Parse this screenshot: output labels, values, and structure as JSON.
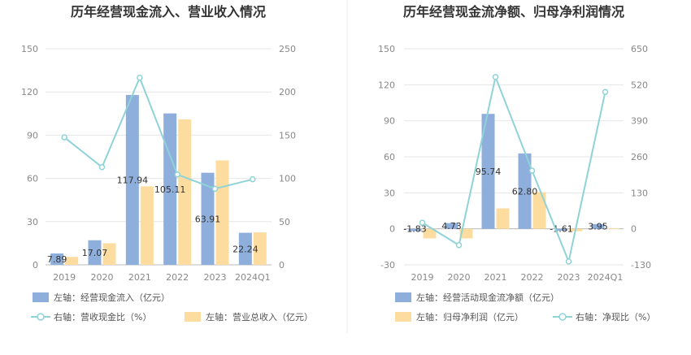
{
  "chart_data": [
    {
      "type": "bar",
      "title": "历年经营现金流入、营业收入情况",
      "categories": [
        "2019",
        "2020",
        "2021",
        "2022",
        "2023",
        "2024Q1"
      ],
      "left_axis": {
        "ylim": [
          0,
          150
        ],
        "ticks": [
          "0",
          "30",
          "60",
          "90",
          "120",
          "150"
        ]
      },
      "right_axis": {
        "ylim": [
          0,
          250
        ],
        "ticks": [
          "0",
          "50",
          "100",
          "150",
          "200",
          "250"
        ]
      },
      "series": [
        {
          "name": "左轴：经营现金流入（亿元）",
          "kind": "bar",
          "axis": "left",
          "color": "#8eaedc",
          "values": [
            7.89,
            17.07,
            117.94,
            105.11,
            63.91,
            22.24
          ],
          "labels": [
            "7.89",
            "17.07",
            "117.94",
            "105.11",
            "63.91",
            "22.24"
          ]
        },
        {
          "name": "左轴：营业总收入（亿元）",
          "kind": "bar",
          "axis": "left",
          "color": "#fddca0",
          "values": [
            5.5,
            15.0,
            54.5,
            101.0,
            72.5,
            22.5
          ]
        },
        {
          "name": "右轴：营收现金比（%）",
          "kind": "line",
          "axis": "right",
          "color": "#8fd3d8",
          "values": [
            147.5,
            113.0,
            216.5,
            104.5,
            88.0,
            99.0
          ]
        }
      ],
      "grid": true,
      "legend": "bottom-left"
    },
    {
      "type": "bar",
      "title": "历年经营现金流净额、归母净利润情况",
      "categories": [
        "2019",
        "2020",
        "2021",
        "2022",
        "2023",
        "2024Q1"
      ],
      "left_axis": {
        "ylim": [
          -30,
          150
        ],
        "ticks": [
          "-30",
          "0",
          "30",
          "60",
          "90",
          "120",
          "150"
        ]
      },
      "right_axis": {
        "ylim": [
          -130,
          650
        ],
        "ticks": [
          "-130",
          "0",
          "130",
          "260",
          "390",
          "520",
          "650"
        ]
      },
      "series": [
        {
          "name": "左轴：经营活动现金流净额（亿元）",
          "kind": "bar",
          "axis": "left",
          "color": "#8eaedc",
          "values": [
            -1.83,
            4.73,
            95.74,
            62.8,
            -1.61,
            3.95
          ],
          "labels": [
            "-1.83",
            "4.73",
            "95.74",
            "62.80",
            "-1.61",
            "3.95"
          ]
        },
        {
          "name": "左轴：归母净利润（亿元）",
          "kind": "bar",
          "axis": "left",
          "color": "#fddca0",
          "values": [
            -8.0,
            -8.0,
            17.0,
            30.5,
            -2.0,
            0.5
          ]
        },
        {
          "name": "右轴：净现比（%）",
          "kind": "line",
          "axis": "right",
          "color": "#8fd3d8",
          "values": [
            22,
            -59,
            548,
            210,
            -118,
            494
          ]
        }
      ],
      "grid": true,
      "legend": "bottom-left"
    }
  ]
}
